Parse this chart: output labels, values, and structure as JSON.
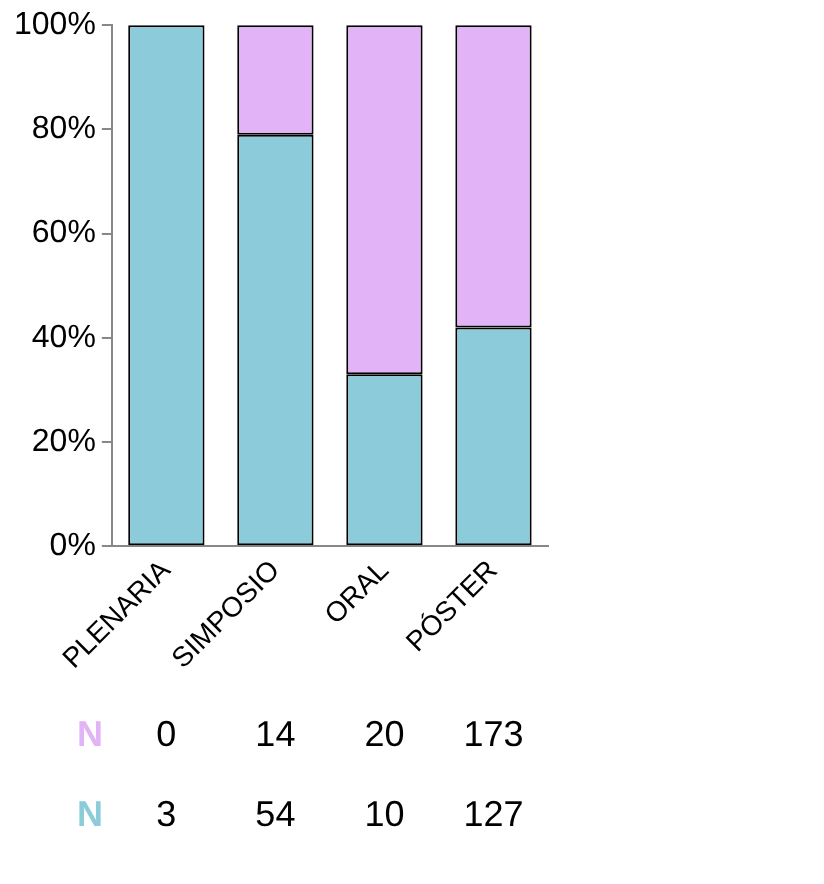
{
  "chart_data": {
    "type": "bar",
    "stacked": true,
    "categories": [
      "PLENARIA",
      "SIMPOSIO",
      "ORAL",
      "PÓSTER"
    ],
    "series": [
      {
        "name": "N",
        "color": "#8ccbd9",
        "values": [
          100,
          79,
          33,
          42
        ]
      },
      {
        "name": "N",
        "color": "#e2b3f7",
        "values": [
          0,
          21,
          67,
          58
        ]
      }
    ],
    "annotations": [
      "0",
      "14",
      "20",
      "173",
      "3",
      "54",
      "10",
      "127"
    ],
    "ylim": [
      0,
      100
    ],
    "yticks": [
      {
        "value": 0,
        "label": "0%"
      },
      {
        "value": 20,
        "label": "20%"
      },
      {
        "value": 40,
        "label": "40%"
      },
      {
        "value": 60,
        "label": "60%"
      },
      {
        "value": 80,
        "label": "80%"
      },
      {
        "value": 100,
        "label": "100%"
      }
    ],
    "grid": false,
    "legend": false
  }
}
